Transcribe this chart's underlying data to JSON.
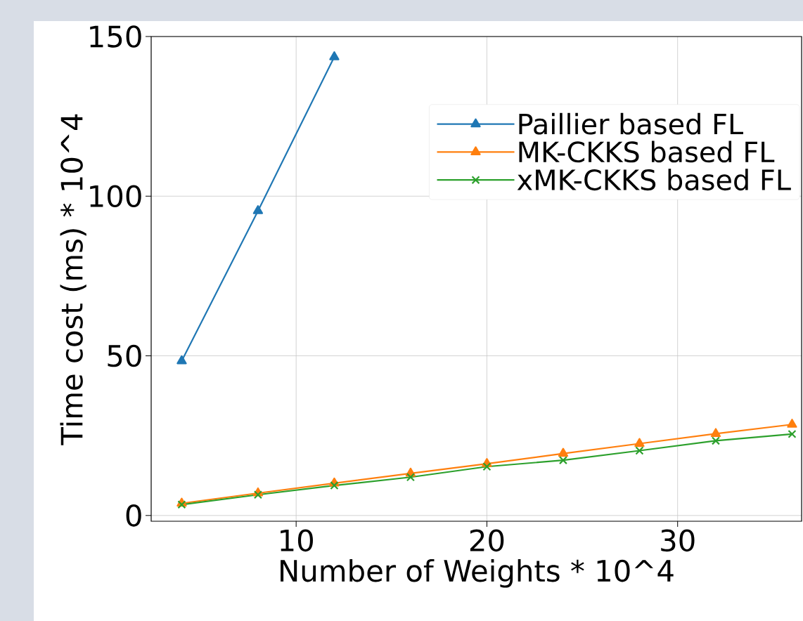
{
  "chart_data": {
    "type": "line",
    "xlabel": "Number of Weights * 10^4",
    "ylabel": "Time cost (ms) * 10^4",
    "x": [
      4,
      8,
      12,
      16,
      20,
      24,
      28,
      32,
      36
    ],
    "series": [
      {
        "name": "Paillier based FL",
        "color": "#1f77b4",
        "marker": "triangle",
        "values": [
          48.4,
          95.4,
          143.6,
          null,
          null,
          null,
          null,
          null,
          null
        ]
      },
      {
        "name": "MK-CKKS based FL",
        "color": "#ff7f0e",
        "marker": "triangle",
        "values": [
          3.8,
          7.0,
          10.1,
          13.2,
          16.2,
          19.4,
          22.5,
          25.6,
          28.5
        ]
      },
      {
        "name": "xMK-CKKS based FL",
        "color": "#2ca02c",
        "marker": "cross",
        "values": [
          3.4,
          6.5,
          9.4,
          12.0,
          15.3,
          17.3,
          20.3,
          23.4,
          25.5
        ]
      }
    ],
    "xlim": [
      2.4,
      36.5
    ],
    "ylim": [
      -1.8,
      150
    ],
    "xticks": [
      10,
      20,
      30
    ],
    "yticks": [
      0,
      50,
      100,
      150
    ],
    "grid": true,
    "legend": "top right",
    "line_style": "solid"
  }
}
